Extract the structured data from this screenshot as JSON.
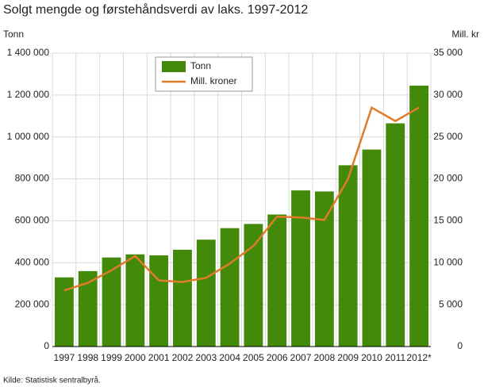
{
  "chart_data": {
    "type": "bar",
    "title": "Solgt mengde og førstehåndsverdi av laks. 1997-2012",
    "y_label": "Tonn",
    "y2_label": "Mill. kr",
    "source": "Kilde: Statistisk sentralbyrå.",
    "categories": [
      "1997",
      "1998",
      "1999",
      "2000",
      "2001",
      "2002",
      "2003",
      "2004",
      "2005",
      "2006",
      "2007",
      "2008",
      "2009",
      "2010",
      "2011",
      "2012*"
    ],
    "series": [
      {
        "name": "Tonn",
        "type": "bar",
        "color": "#438a0b",
        "values": [
          330000,
          360000,
          425000,
          440000,
          435000,
          462000,
          510000,
          565000,
          585000,
          630000,
          745000,
          740000,
          865000,
          940000,
          1065000,
          1245000
        ]
      },
      {
        "name": "Mill. kroner",
        "type": "line",
        "axis": "y2",
        "color": "#e07b29",
        "values": [
          6700,
          7600,
          9100,
          10800,
          7900,
          7700,
          8200,
          9900,
          12000,
          15500,
          15400,
          15100,
          20000,
          28500,
          26900,
          28500
        ]
      }
    ],
    "ylim": [
      0,
      1400000
    ],
    "yticks": [
      0,
      {
        "value": 200000,
        "label": "200 000"
      },
      {
        "value": 400000,
        "label": "400 000"
      },
      {
        "value": 600000,
        "label": "600 000"
      },
      {
        "value": 800000,
        "label": "800 000"
      },
      {
        "value": 1000000,
        "label": "1 000 000"
      },
      {
        "value": 1200000,
        "label": "1 200 000"
      },
      {
        "value": 1400000,
        "label": "1 400 000"
      }
    ],
    "y2lim": [
      0,
      35000
    ],
    "y2ticks": [
      0,
      {
        "value": 5000,
        "label": "5 000"
      },
      {
        "value": 10000,
        "label": "10 000"
      },
      {
        "value": 15000,
        "label": "15 000"
      },
      {
        "value": 20000,
        "label": "20 000"
      },
      {
        "value": 25000,
        "label": "25 000"
      },
      {
        "value": 30000,
        "label": "30 000"
      },
      {
        "value": 35000,
        "label": "35 000"
      }
    ],
    "grid": true,
    "legend": "top-left"
  }
}
